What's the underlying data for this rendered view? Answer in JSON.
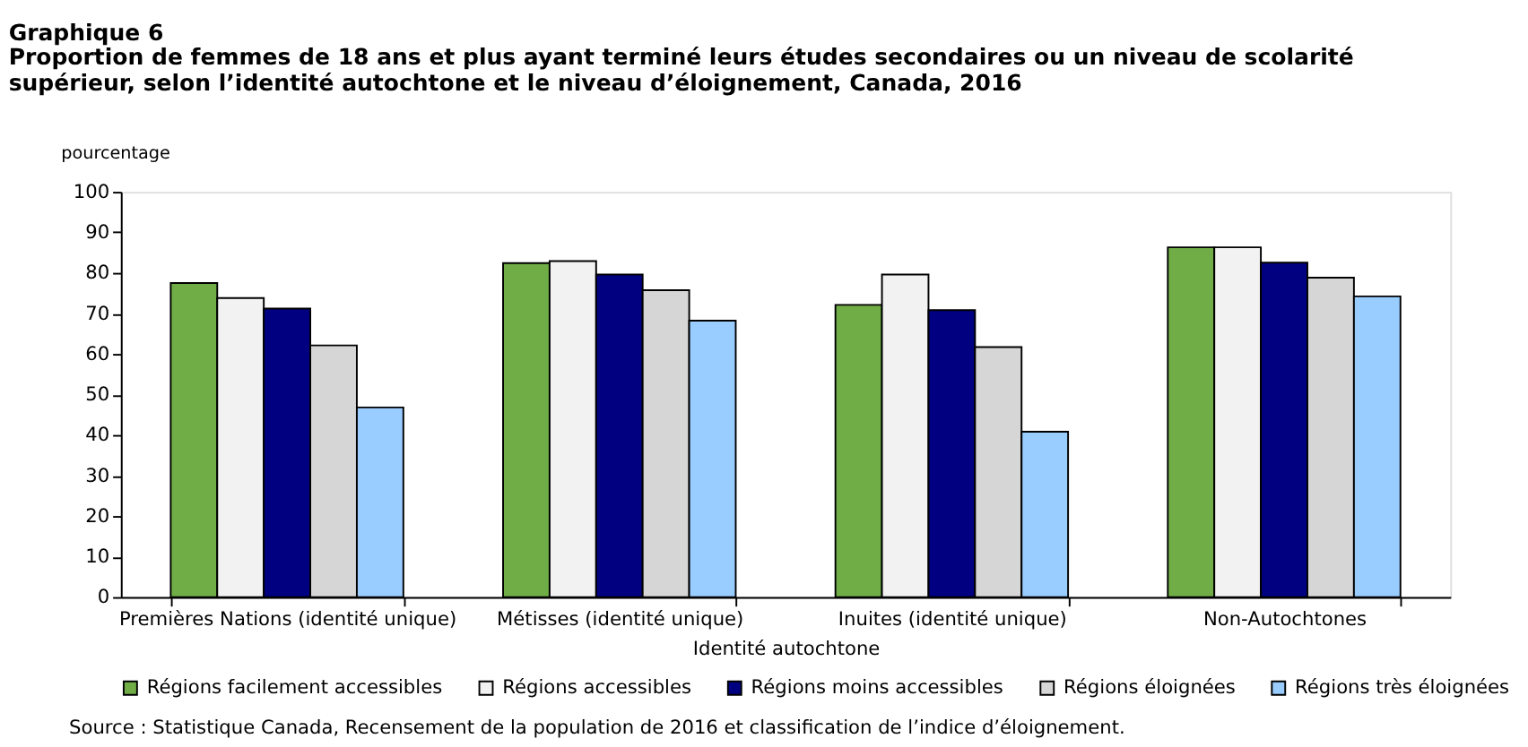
{
  "chart_data": {
    "type": "bar",
    "title": "Graphique 6",
    "subtitle": "Proportion de femmes de 18 ans et plus ayant terminé leurs études secondaires ou un niveau de scolarité supérieur, selon l’identité autochtone et le niveau d’éloignement, Canada, 2016",
    "ylabel": "pourcentage",
    "xlabel": "Identité autochtone",
    "categories": [
      "Premières Nations (identité unique)",
      "Métisses (identité unique)",
      "Inuites (identité unique)",
      "Non-Autochtones"
    ],
    "series": [
      {
        "name": "Régions facilement accessibles",
        "color": "#70ad47",
        "values": [
          77.5,
          82.4,
          72.1,
          86.3
        ]
      },
      {
        "name": "Régions accessibles",
        "color": "#f2f2f2",
        "values": [
          73.8,
          82.9,
          79.6,
          86.3
        ]
      },
      {
        "name": "Régions moins accessibles",
        "color": "#000080",
        "values": [
          71.2,
          79.6,
          70.8,
          82.5
        ]
      },
      {
        "name": "Régions éloignées",
        "color": "#d6d6d6",
        "values": [
          62.1,
          75.7,
          61.7,
          78.8
        ]
      },
      {
        "name": "Régions très éloignées",
        "color": "#99ccff",
        "values": [
          46.8,
          68.2,
          40.8,
          74.2
        ]
      }
    ],
    "ylim": [
      0,
      100
    ],
    "yticks": [
      0,
      10,
      20,
      30,
      40,
      50,
      60,
      70,
      80,
      90,
      100
    ],
    "grid": false,
    "legend": "bottom",
    "annotations": [
      "Source : Statistique Canada, Recensement de la population de 2016 et classification de l’indice d’éloignement."
    ]
  }
}
